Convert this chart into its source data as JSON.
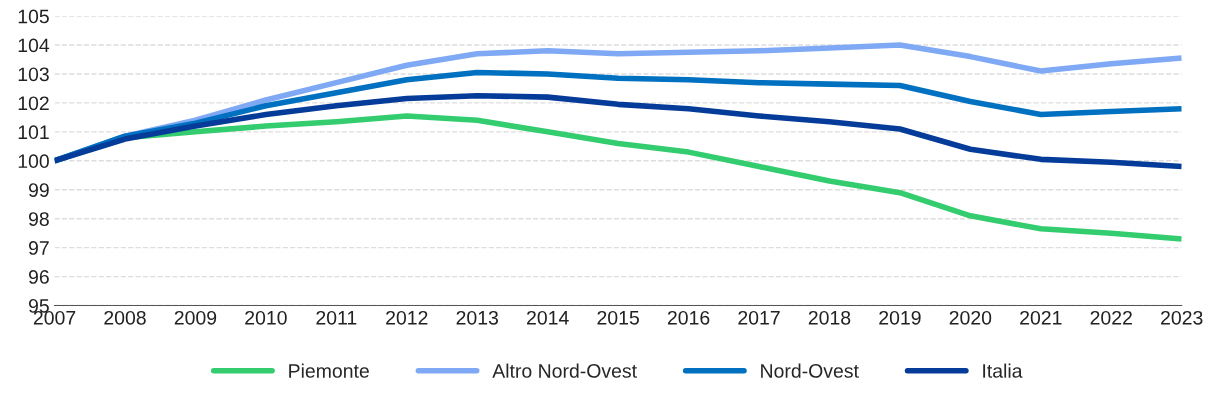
{
  "chart_data": {
    "type": "line",
    "x": [
      2007,
      2008,
      2009,
      2010,
      2011,
      2012,
      2013,
      2014,
      2015,
      2016,
      2017,
      2018,
      2019,
      2020,
      2021,
      2022,
      2023
    ],
    "series": [
      {
        "name": "Piemonte",
        "color": "#33cc6e",
        "values": [
          100,
          100.8,
          101.0,
          101.2,
          101.35,
          101.55,
          101.4,
          101.0,
          100.6,
          100.3,
          99.8,
          99.3,
          98.9,
          98.1,
          97.65,
          97.5,
          97.3
        ]
      },
      {
        "name": "Altro Nord-Ovest",
        "color": "#7fa9f5",
        "values": [
          100,
          100.85,
          101.4,
          102.1,
          102.7,
          103.3,
          103.7,
          103.8,
          103.7,
          103.75,
          103.8,
          103.9,
          104.0,
          103.6,
          103.1,
          103.35,
          103.55
        ]
      },
      {
        "name": "Nord-Ovest",
        "color": "#0070c0",
        "values": [
          100,
          100.85,
          101.3,
          101.9,
          102.35,
          102.8,
          103.05,
          103.0,
          102.85,
          102.8,
          102.7,
          102.65,
          102.6,
          102.05,
          101.6,
          101.7,
          101.8
        ]
      },
      {
        "name": "Italia",
        "color": "#063c99",
        "values": [
          100,
          100.75,
          101.2,
          101.6,
          101.9,
          102.15,
          102.25,
          102.2,
          101.95,
          101.8,
          101.55,
          101.35,
          101.1,
          100.4,
          100.05,
          99.95,
          99.8
        ]
      }
    ],
    "xlim": [
      2007,
      2023
    ],
    "xticks": [
      2007,
      2008,
      2009,
      2010,
      2011,
      2012,
      2013,
      2014,
      2015,
      2016,
      2017,
      2018,
      2019,
      2020,
      2021,
      2022,
      2023
    ],
    "ylim": [
      95,
      105
    ],
    "yticks": [
      95,
      96,
      97,
      98,
      99,
      100,
      101,
      102,
      103,
      104,
      105
    ],
    "grid": "y",
    "legend": "bottom",
    "line_style": "solid",
    "marker": "none"
  }
}
